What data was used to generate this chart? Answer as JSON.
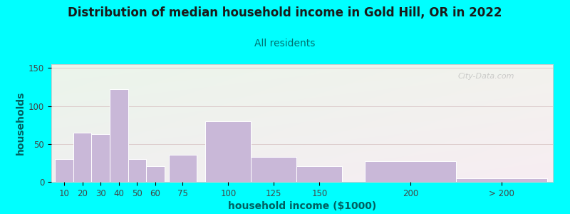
{
  "title": "Distribution of median household income in Gold Hill, OR in 2022",
  "subtitle": "All residents",
  "xlabel": "household income ($1000)",
  "ylabel": "households",
  "background_color": "#00FFFF",
  "bar_color": "#c9b8d8",
  "bar_edge_color": "#ffffff",
  "title_color": "#1a1a1a",
  "subtitle_color": "#007070",
  "axis_label_color": "#006060",
  "tick_label_color": "#444444",
  "grid_color": "#ddcccc",
  "values": [
    30,
    65,
    63,
    122,
    30,
    21,
    36,
    80,
    33,
    21,
    27,
    5
  ],
  "bar_centers": [
    10,
    20,
    30,
    40,
    50,
    60,
    75,
    100,
    125,
    150,
    200,
    250
  ],
  "bar_widths": [
    10,
    10,
    10,
    10,
    10,
    10,
    15,
    25,
    25,
    25,
    50,
    50
  ],
  "ylim": [
    0,
    155
  ],
  "yticks": [
    0,
    50,
    100,
    150
  ],
  "xtick_positions": [
    10,
    20,
    30,
    40,
    50,
    60,
    75,
    100,
    125,
    150,
    200,
    250
  ],
  "xtick_labels": [
    "10",
    "20",
    "30",
    "40",
    "50",
    "60",
    "75",
    "100",
    "125",
    "150",
    "200",
    "> 200"
  ],
  "xlim": [
    3,
    278
  ],
  "watermark": "City-Data.com",
  "title_fontsize": 12,
  "subtitle_fontsize": 10,
  "axis_label_fontsize": 10,
  "tick_fontsize": 8.5
}
